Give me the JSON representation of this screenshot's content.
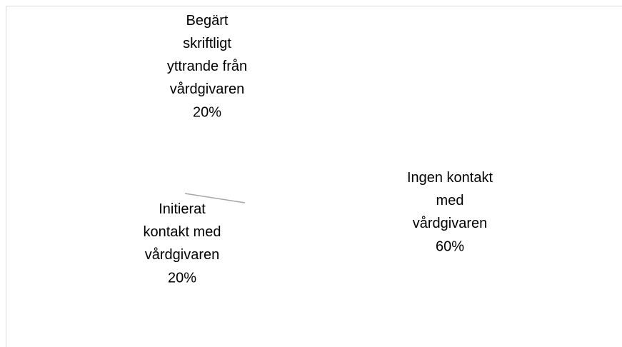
{
  "chart_data": {
    "type": "pie",
    "categories": [
      "Begärt skriftligt yttrande från vårdgivaren",
      "Ingen kontakt med vårdgivaren",
      "Initierat kontakt med vårdgivaren"
    ],
    "values": [
      20,
      60,
      20
    ],
    "value_labels": [
      "20%",
      "60%",
      "20%"
    ],
    "colors": [
      "#ffffff",
      "#ffffff",
      "#ffffff"
    ]
  }
}
